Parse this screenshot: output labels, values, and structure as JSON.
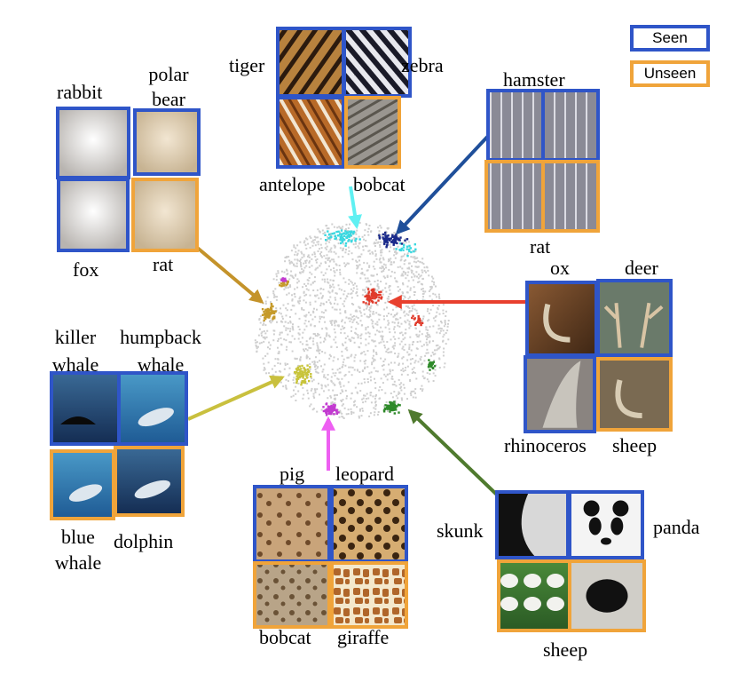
{
  "colors": {
    "seen": "#2f55c8",
    "unseen": "#f0a43a",
    "cluster_gray": "#cfcfcf"
  },
  "legend": {
    "seen": "Seen",
    "unseen": "Unseen"
  },
  "groups": [
    {
      "id": "stripes",
      "cluster_color": "#3ad8e0",
      "arrow_color": "#5ff0f2",
      "tiles": [
        {
          "label": "tiger",
          "status": "seen",
          "icon": "tiger-fur-texture"
        },
        {
          "label": "zebra",
          "status": "seen",
          "icon": "zebra-stripes-texture"
        },
        {
          "label": "antelope",
          "status": "seen",
          "icon": "antelope-fur-texture"
        },
        {
          "label": "bobcat",
          "status": "unseen",
          "icon": "bobcat-fur-texture"
        }
      ]
    },
    {
      "id": "rodent-cage",
      "cluster_color": "#1a2a8a",
      "arrow_color": "#1f4f9a",
      "tiles": [
        {
          "label": "hamster",
          "status": "seen",
          "icon": "cage-photo"
        },
        {
          "label": "",
          "status": "seen",
          "icon": "cage-photo"
        },
        {
          "label": "",
          "status": "unseen",
          "icon": "rat-in-cage-photo"
        },
        {
          "label": "rat",
          "status": "unseen",
          "icon": "rat-in-cage-photo"
        }
      ]
    },
    {
      "id": "white-fur",
      "cluster_color": "#c59a2a",
      "arrow_color": "#c4932a",
      "tiles": [
        {
          "label": "rabbit",
          "status": "seen",
          "icon": "white-rabbit-photo"
        },
        {
          "label": "polar bear",
          "status": "seen",
          "icon": "polar-bear-fur-photo"
        },
        {
          "label": "fox",
          "status": "seen",
          "icon": "white-fox-photo"
        },
        {
          "label": "rat",
          "status": "unseen",
          "icon": "white-rat-photo"
        }
      ]
    },
    {
      "id": "horns",
      "cluster_color": "#e03a2a",
      "arrow_color": "#e8402e",
      "tiles": [
        {
          "label": "ox",
          "status": "seen",
          "icon": "ox-horn-photo"
        },
        {
          "label": "deer",
          "status": "seen",
          "icon": "deer-antler-photo"
        },
        {
          "label": "rhinoceros",
          "status": "seen",
          "icon": "rhino-horn-photo"
        },
        {
          "label": "sheep",
          "status": "unseen",
          "icon": "sheep-horn-photo"
        }
      ]
    },
    {
      "id": "sea",
      "cluster_color": "#c8c43a",
      "arrow_color": "#c9c03e",
      "tiles": [
        {
          "label": "killer whale",
          "status": "seen",
          "icon": "killer-whale-photo"
        },
        {
          "label": "humpback whale",
          "status": "seen",
          "icon": "humpback-whale-photo"
        },
        {
          "label": "blue whale",
          "status": "unseen",
          "icon": "blue-whale-photo"
        },
        {
          "label": "dolphin",
          "status": "unseen",
          "icon": "dolphin-photo"
        }
      ]
    },
    {
      "id": "spots",
      "cluster_color": "#c23ad0",
      "arrow_color": "#ee5ff2",
      "tiles": [
        {
          "label": "pig",
          "status": "seen",
          "icon": "spotted-fur-photo"
        },
        {
          "label": "leopard",
          "status": "seen",
          "icon": "leopard-spots-texture"
        },
        {
          "label": "bobcat",
          "status": "unseen",
          "icon": "bobcat-spots-texture"
        },
        {
          "label": "giraffe",
          "status": "unseen",
          "icon": "giraffe-pattern-texture"
        }
      ]
    },
    {
      "id": "black-white",
      "cluster_color": "#2f8a2a",
      "arrow_color": "#4f7a2e",
      "tiles": [
        {
          "label": "skunk",
          "status": "seen",
          "icon": "skunk-fur-photo"
        },
        {
          "label": "panda",
          "status": "seen",
          "icon": "panda-face-photo"
        },
        {
          "label": "sheep",
          "status": "unseen",
          "icon": "sheep-flock-photo"
        },
        {
          "label": "",
          "status": "unseen",
          "icon": "sheep-face-photo"
        }
      ]
    }
  ]
}
